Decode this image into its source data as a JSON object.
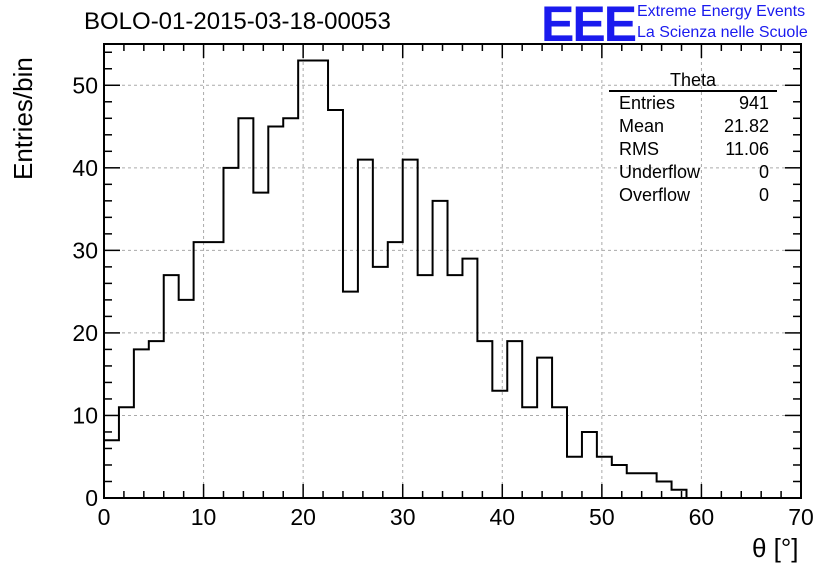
{
  "title": "BOLO-01-2015-03-18-00053",
  "logo": {
    "mark": "EEE",
    "line1": "Extreme Energy Events",
    "line2": "La Scienza nelle Scuole",
    "color": "#1a1aee"
  },
  "stats": {
    "title": "Theta",
    "rows": [
      {
        "label": "Entries",
        "value": "941"
      },
      {
        "label": "Mean",
        "value": "21.82"
      },
      {
        "label": "RMS",
        "value": "11.06"
      },
      {
        "label": "Underflow",
        "value": "0"
      },
      {
        "label": "Overflow",
        "value": "0"
      }
    ]
  },
  "chart_data": {
    "type": "histogram",
    "title": "BOLO-01-2015-03-18-00053",
    "xlabel": "θ [°]",
    "ylabel": "Entries/bin",
    "xlim": [
      0,
      70
    ],
    "ylim": [
      0,
      55
    ],
    "grid": true,
    "bin_width": 1.5,
    "bin_edges_start": 0,
    "x_ticks": [
      0,
      10,
      20,
      30,
      40,
      50,
      60,
      70
    ],
    "y_ticks": [
      0,
      10,
      20,
      30,
      40,
      50
    ],
    "values": [
      7,
      11,
      18,
      19,
      27,
      24,
      31,
      31,
      40,
      46,
      37,
      45,
      46,
      53,
      53,
      47,
      25,
      41,
      28,
      31,
      41,
      27,
      36,
      27,
      29,
      19,
      13,
      19,
      11,
      17,
      11,
      5,
      8,
      5,
      4,
      3,
      3,
      2,
      1,
      0,
      0,
      0,
      0,
      0,
      0,
      0
    ]
  }
}
